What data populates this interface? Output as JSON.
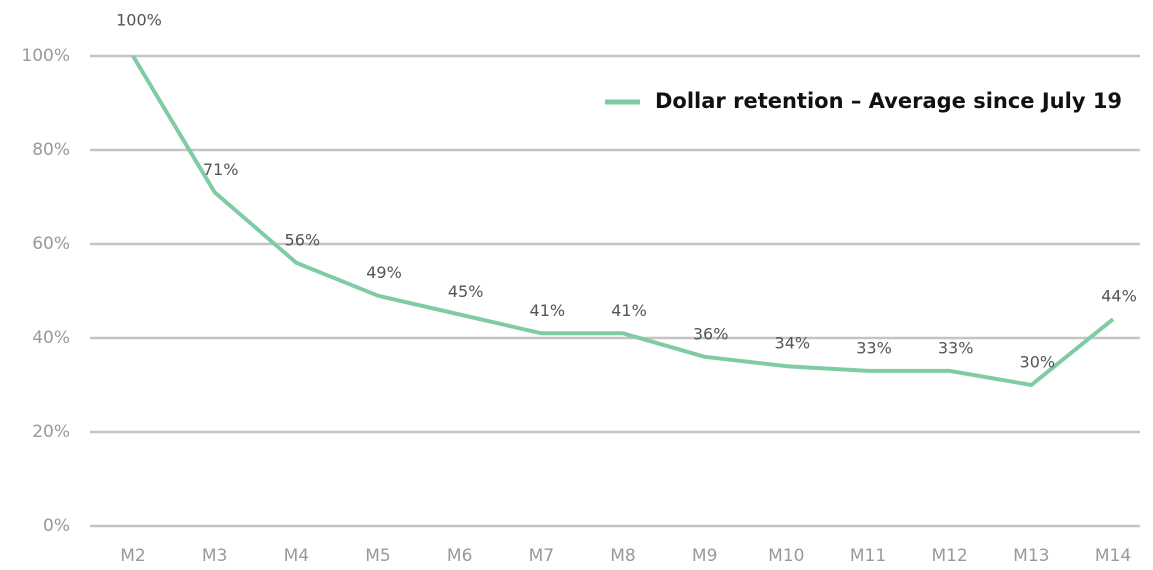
{
  "chart_data": {
    "type": "line",
    "categories": [
      "M2",
      "M3",
      "M4",
      "M5",
      "M6",
      "M7",
      "M8",
      "M9",
      "M10",
      "M11",
      "M12",
      "M13",
      "M14"
    ],
    "series": [
      {
        "name": "Dollar retention – Average since July 19",
        "color": "#7fcca4",
        "values": [
          100,
          71,
          56,
          49,
          45,
          41,
          41,
          36,
          34,
          33,
          33,
          30,
          44
        ],
        "value_labels": [
          "100%",
          "71%",
          "56%",
          "49%",
          "45%",
          "41%",
          "41%",
          "36%",
          "34%",
          "33%",
          "33%",
          "30%",
          "44%"
        ]
      }
    ],
    "ylim": [
      0,
      100
    ],
    "yticks": [
      {
        "value": 0,
        "label": "0%"
      },
      {
        "value": 20,
        "label": "20%"
      },
      {
        "value": 40,
        "label": "40%"
      },
      {
        "value": 60,
        "label": "60%"
      },
      {
        "value": 80,
        "label": "80%"
      },
      {
        "value": 100,
        "label": "100%"
      }
    ],
    "grid": true
  }
}
